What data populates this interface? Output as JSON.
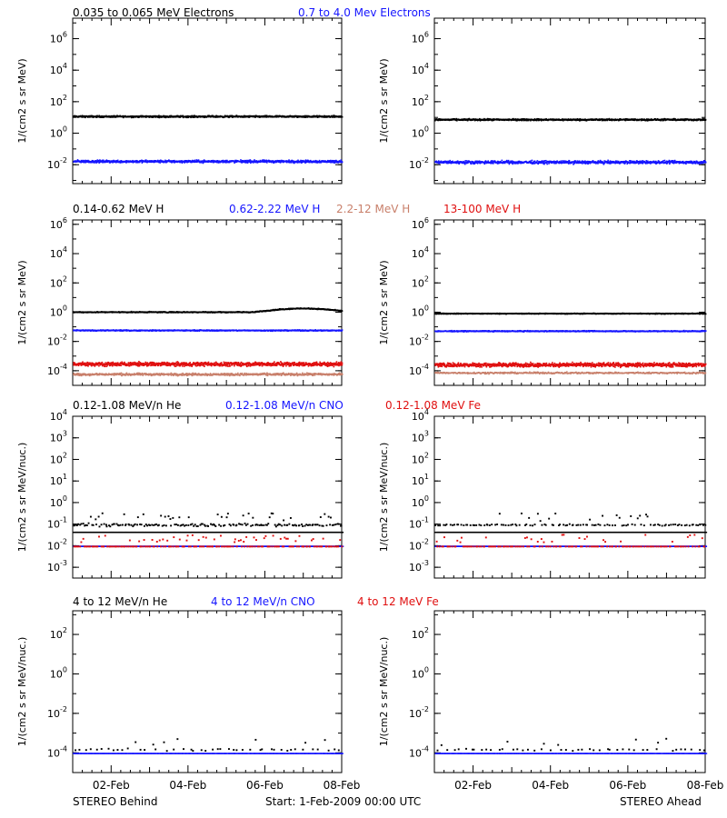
{
  "footer": {
    "left": "STEREO Behind",
    "center": "Start:  1-Feb-2009 00:00 UTC",
    "right": "STEREO Ahead"
  },
  "x_tick_labels": [
    "02-Feb",
    "04-Feb",
    "06-Feb",
    "08-Feb"
  ],
  "colors": {
    "black": "#000000",
    "blue": "#1515ff",
    "salmon": "#c87f6a",
    "red": "#e01010",
    "axis": "#000000"
  },
  "chart_data": [
    {
      "type": "scatter",
      "row": 0,
      "ylabel_sup": "1/(cm² s sr MeV)",
      "titles": [
        {
          "text": "0.035 to 0.065 MeV Electrons",
          "color": "black"
        },
        {
          "text": "0.7 to 4.0 Mev Electrons",
          "color": "blue"
        }
      ],
      "yticks": [
        -2,
        0,
        2,
        4,
        6
      ],
      "ylim_log10": [
        -3.2,
        7.3
      ],
      "xlim_days": [
        1.0,
        8.0
      ],
      "panels": [
        {
          "side": "left",
          "ylabel": "1/(cm2 s sr MeV)",
          "series": [
            {
              "color": "black",
              "base": 1.1,
              "spread": 0.08,
              "n": 900
            },
            {
              "color": "blue",
              "base": -1.75,
              "spread": 0.12,
              "n": 900
            }
          ]
        },
        {
          "side": "right",
          "ylabel": "1/(cm2 s sr MeV)",
          "series": [
            {
              "color": "black",
              "base": 0.9,
              "spread": 0.08,
              "n": 900
            },
            {
              "color": "blue",
              "base": -1.8,
              "spread": 0.14,
              "n": 900
            }
          ]
        }
      ]
    },
    {
      "type": "scatter",
      "row": 1,
      "titles": [
        {
          "text": "0.14-0.62 MeV H",
          "color": "black"
        },
        {
          "text": "0.62-2.22 MeV H",
          "color": "blue"
        },
        {
          "text": "2.2-12 MeV H",
          "color": "salmon"
        },
        {
          "text": "13-100 MeV H",
          "color": "red"
        }
      ],
      "yticks": [
        -4,
        -2,
        0,
        2,
        4,
        6
      ],
      "ylim_log10": [
        -5.0,
        6.3
      ],
      "xlim_days": [
        1.0,
        8.0
      ],
      "panels": [
        {
          "side": "left",
          "ylabel": "1/(cm2 s sr MeV)",
          "series": [
            {
              "color": "black",
              "base": 0.05,
              "spread": 0.05,
              "n": 900,
              "bump": {
                "from": 5.7,
                "to": 8.0,
                "amp": 0.25
              }
            },
            {
              "color": "blue",
              "base": -1.2,
              "spread": 0.05,
              "n": 900
            },
            {
              "color": "red",
              "base": -3.5,
              "spread": 0.2,
              "n": 1200
            },
            {
              "color": "salmon",
              "base": -4.2,
              "spread": 0.12,
              "n": 700
            }
          ]
        },
        {
          "side": "right",
          "ylabel": "1/(cm2 s sr MeV)",
          "series": [
            {
              "color": "black",
              "base": -0.05,
              "spread": 0.04,
              "n": 900
            },
            {
              "color": "blue",
              "base": -1.25,
              "spread": 0.05,
              "n": 900
            },
            {
              "color": "red",
              "base": -3.55,
              "spread": 0.2,
              "n": 1200
            },
            {
              "color": "salmon",
              "base": -4.1,
              "spread": 0.08,
              "n": 500
            }
          ]
        }
      ]
    },
    {
      "type": "scatter",
      "row": 2,
      "titles": [
        {
          "text": "0.12-1.08 MeV/n He",
          "color": "black"
        },
        {
          "text": "0.12-1.08 MeV/n CNO",
          "color": "blue"
        },
        {
          "text": "0.12-1.08 MeV Fe",
          "color": "red"
        }
      ],
      "yticks": [
        -3,
        -2,
        -1,
        0,
        1,
        2,
        3,
        4
      ],
      "ylim_log10": [
        -3.5,
        4.0
      ],
      "xlim_days": [
        1.0,
        8.0
      ],
      "panels": [
        {
          "side": "left",
          "ylabel": "1/(cm2 s sr MeV/nuc.)",
          "series": [
            {
              "color": "black",
              "base": -1.35,
              "spread": 0.0,
              "n": 500,
              "line": true
            },
            {
              "color": "black",
              "base": -1.0,
              "spread": 0.1,
              "n": 180,
              "sparse": true
            },
            {
              "color": "blue",
              "base": -2.0,
              "spread": 0.0,
              "n": 500,
              "line": true
            },
            {
              "color": "red",
              "base": -2.0,
              "spread": 0.0,
              "n": 180,
              "sparse": true
            }
          ]
        },
        {
          "side": "right",
          "ylabel": "1/(cm2 s sr MeV/nuc.)",
          "series": [
            {
              "color": "black",
              "base": -1.35,
              "spread": 0.0,
              "n": 500,
              "line": true
            },
            {
              "color": "black",
              "base": -1.0,
              "spread": 0.05,
              "n": 120,
              "sparse": true
            },
            {
              "color": "blue",
              "base": -2.0,
              "spread": 0.0,
              "n": 500,
              "line": true
            },
            {
              "color": "red",
              "base": -2.0,
              "spread": 0.0,
              "n": 150,
              "sparse": true
            }
          ]
        }
      ]
    },
    {
      "type": "scatter",
      "row": 3,
      "titles": [
        {
          "text": "4 to 12 MeV/n He",
          "color": "black"
        },
        {
          "text": "4 to 12 MeV/n CNO",
          "color": "blue"
        },
        {
          "text": "4 to 12 MeV Fe",
          "color": "red"
        }
      ],
      "yticks": [
        -4,
        -2,
        0,
        2
      ],
      "ylim_log10": [
        -5.0,
        3.2
      ],
      "xlim_days": [
        1.0,
        8.0
      ],
      "panels": [
        {
          "side": "left",
          "ylabel": "1/(cm2 s sr MeV/nuc.)",
          "series": [
            {
              "color": "blue",
              "base": -4.0,
              "spread": 0.0,
              "n": 300,
              "line": true
            },
            {
              "color": "black",
              "base": -3.8,
              "spread": 0.08,
              "n": 50,
              "sparse": true
            }
          ]
        },
        {
          "side": "right",
          "ylabel": "1/(cm2 s sr MeV/nuc.)",
          "series": [
            {
              "color": "blue",
              "base": -4.0,
              "spread": 0.0,
              "n": 300,
              "line": true
            },
            {
              "color": "black",
              "base": -3.8,
              "spread": 0.08,
              "n": 50,
              "sparse": true
            }
          ]
        }
      ]
    }
  ]
}
